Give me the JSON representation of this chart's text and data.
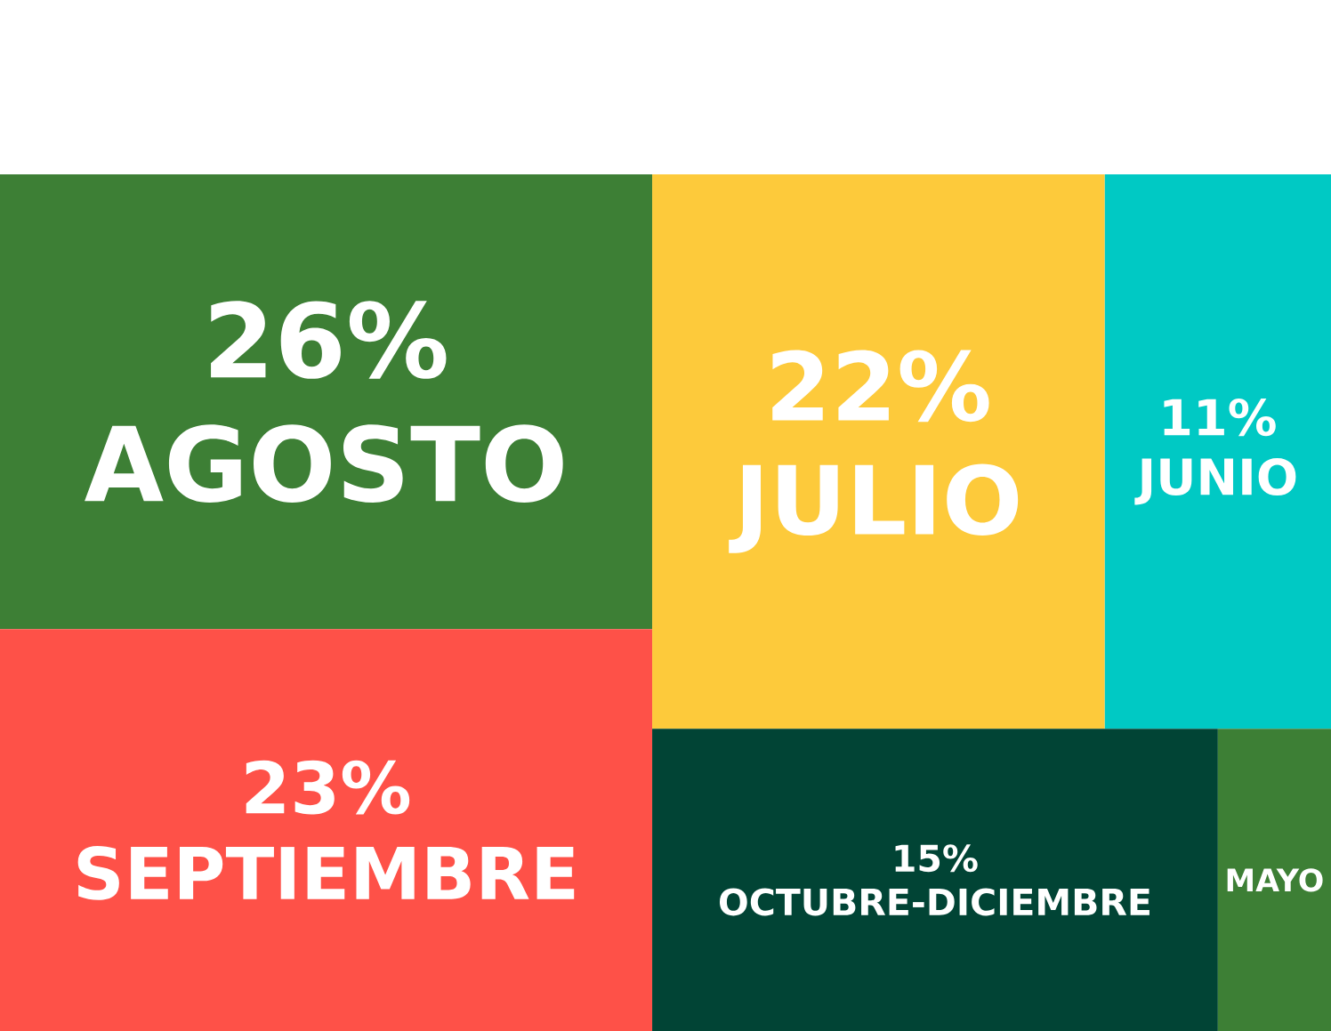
{
  "chart_data": {
    "type": "other",
    "categories": [
      "AGOSTO",
      "SEPTIEMBRE",
      "JULIO",
      "JUNIO",
      "OCTUBRE-DICIEMBRE",
      "MAYO"
    ],
    "values": [
      26,
      23,
      22,
      11,
      15,
      null
    ],
    "value_labels": [
      "26%",
      "23%",
      "22%",
      "11%",
      "15%",
      null
    ],
    "colors": [
      "#3d7f35",
      "#fe5148",
      "#fdca3b",
      "#00c9c4",
      "#014435",
      "#3d7f35"
    ]
  }
}
